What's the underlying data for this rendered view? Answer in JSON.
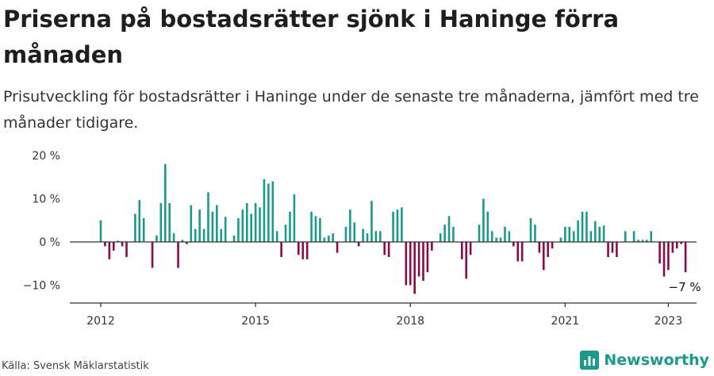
{
  "title": "Priserna på bostadsrätter sjönk i Haninge förra månaden",
  "subtitle": "Prisutveckling för bostadsrätter i Haninge under de senaste tre månaderna, jämfört med tre månader tidigare.",
  "source": "Källa: Svensk Mäklarstatistik",
  "brand": {
    "name": "Newsworthy",
    "icon": "newsworthy-logo-icon"
  },
  "colors": {
    "positive": "#1a9a8c",
    "negative": "#8c0a4a",
    "axis": "#333333",
    "zero_line": "#333333"
  },
  "chart_data": {
    "type": "bar",
    "unit": "%",
    "ylim": [
      -13,
      20
    ],
    "y_ticks": [
      {
        "value": 20,
        "label": "20 %"
      },
      {
        "value": 10,
        "label": "10 %"
      },
      {
        "value": 0,
        "label": "0 %"
      },
      {
        "value": -10,
        "label": "−10 %"
      }
    ],
    "x_ticks": [
      {
        "month_index": 0,
        "label": "2012"
      },
      {
        "month_index": 36,
        "label": "2015"
      },
      {
        "month_index": 72,
        "label": "2018"
      },
      {
        "month_index": 108,
        "label": "2021"
      },
      {
        "month_index": 132,
        "label": "2023"
      }
    ],
    "start": "2012-01",
    "grid": false,
    "end_label": "−7 %",
    "values": [
      5,
      -1,
      -4,
      -2,
      0.3,
      -1,
      -3.5,
      0,
      6.5,
      9.7,
      5.5,
      0,
      -6,
      1.5,
      9,
      18,
      9,
      2,
      -6,
      0.5,
      -0.5,
      8.5,
      3,
      7.5,
      3,
      11.5,
      7,
      8.5,
      3,
      5.8,
      0,
      1.5,
      5.5,
      7.5,
      9,
      6.5,
      9,
      8,
      14.5,
      13.5,
      14,
      2.5,
      -3.5,
      4,
      7,
      11,
      -3,
      -4,
      -4,
      7,
      6,
      5.5,
      1,
      1.5,
      2,
      -2.5,
      0,
      3.5,
      7.5,
      4.5,
      -1,
      3,
      2,
      9.5,
      2.5,
      2.5,
      -3,
      -3.5,
      7,
      7.5,
      8,
      -10,
      -10,
      -12,
      -8,
      -9,
      -7,
      -2,
      0,
      2,
      4,
      6,
      3.5,
      0,
      -4,
      -8.5,
      -3,
      0,
      4,
      10,
      7,
      2.5,
      1,
      1,
      3.5,
      2.5,
      -1,
      -4.5,
      -4.5,
      0,
      5.5,
      4,
      -2.5,
      -6.5,
      -3.5,
      -1.5,
      0,
      1,
      3.5,
      3.5,
      2.5,
      5,
      7,
      7,
      2.5,
      4.8,
      3.5,
      3.8,
      -3.5,
      -2.5,
      -3.5,
      0,
      2.5,
      0,
      2.5,
      0.5,
      0.5,
      0.5,
      2.5,
      0,
      -5,
      -8,
      -6.5,
      -2.5,
      -1.5,
      -0.5,
      -7
    ]
  }
}
